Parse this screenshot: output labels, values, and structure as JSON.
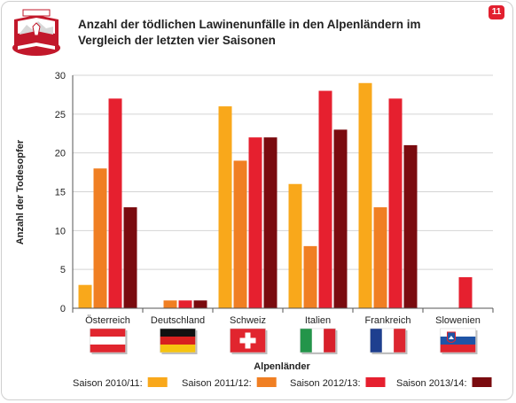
{
  "header": {
    "title": "Anzahl der tödlichen Lawinenunfälle in den Alpenländern im Vergleich der letzten vier Saisonen",
    "page_number": "11"
  },
  "colors": {
    "saison_2010_11": "#f9a81b",
    "saison_2011_12": "#f07f23",
    "saison_2012_13": "#e6202f",
    "saison_2013_14": "#7a0b0f",
    "logo_red": "#c2182b"
  },
  "chart_data": {
    "type": "bar",
    "title": "Anzahl der tödlichen Lawinenunfälle in den Alpenländern im Vergleich der letzten vier Saisonen",
    "xlabel": "Alpenländer",
    "ylabel": "Anzahl der Todesopfer",
    "ylim": [
      0,
      30
    ],
    "yticks": [
      0,
      5,
      10,
      15,
      20,
      25,
      30
    ],
    "grid": "horizontal",
    "legend_position": "bottom",
    "categories": [
      "Österreich",
      "Deutschland",
      "Schweiz",
      "Italien",
      "Frankreich",
      "Slowenien"
    ],
    "flags": [
      "austria-flag",
      "germany-flag",
      "switzerland-flag",
      "italy-flag",
      "france-flag",
      "slovenia-flag"
    ],
    "series": [
      {
        "name": "Saison 2010/11:",
        "color": "#f9a81b",
        "values": [
          3,
          0,
          26,
          16,
          29,
          0
        ]
      },
      {
        "name": "Saison 2011/12:",
        "color": "#f07f23",
        "values": [
          18,
          1,
          19,
          8,
          13,
          0
        ]
      },
      {
        "name": "Saison 2012/13:",
        "color": "#e6202f",
        "values": [
          27,
          1,
          22,
          28,
          27,
          4
        ]
      },
      {
        "name": "Saison 2013/14:",
        "color": "#7a0b0f",
        "values": [
          13,
          1,
          22,
          23,
          21,
          0
        ]
      }
    ]
  }
}
